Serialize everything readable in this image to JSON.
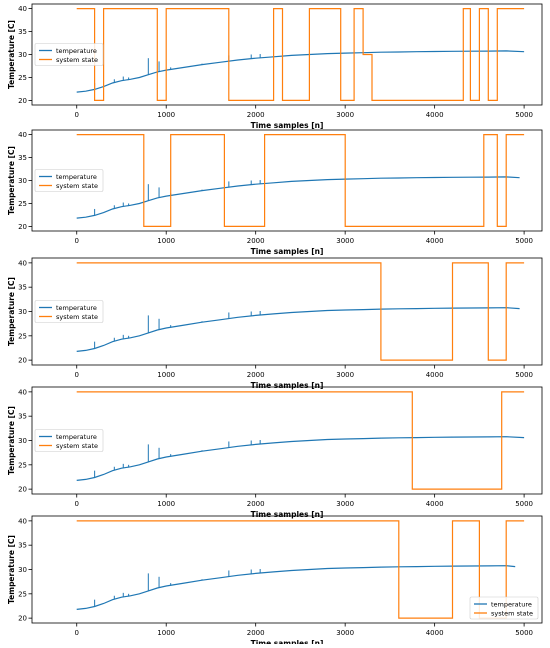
{
  "colors": {
    "temperature": "#1f77b4",
    "system_state": "#ff7f0e",
    "axes": "#000000",
    "background": "#ffffff"
  },
  "chart_data": [
    {
      "type": "line",
      "xlabel": "Time samples [n]",
      "ylabel": "Temperature [C]",
      "xlim": [
        -500,
        5200
      ],
      "ylim": [
        19,
        41
      ],
      "xticks": [
        0,
        1000,
        2000,
        3000,
        4000,
        5000
      ],
      "yticks": [
        20,
        25,
        30,
        35,
        40
      ],
      "grid": false,
      "legend": {
        "position": "center-left",
        "entries": [
          "temperature",
          "system state"
        ]
      },
      "series": [
        {
          "name": "temperature",
          "x": [
            0,
            100,
            200,
            300,
            400,
            500,
            600,
            700,
            800,
            900,
            1000,
            1200,
            1400,
            1600,
            1800,
            2000,
            2200,
            2400,
            2600,
            2800,
            3000,
            3200,
            3400,
            3600,
            3800,
            4000,
            4200,
            4400,
            4600,
            4800,
            5000
          ],
          "y": [
            21.8,
            22.0,
            22.4,
            23.0,
            23.8,
            24.3,
            24.6,
            25.0,
            25.6,
            26.2,
            26.6,
            27.2,
            27.8,
            28.3,
            28.8,
            29.2,
            29.5,
            29.8,
            30.0,
            30.2,
            30.3,
            30.4,
            30.5,
            30.55,
            30.6,
            30.65,
            30.7,
            30.72,
            30.75,
            30.78,
            30.6
          ],
          "spikes": [
            [
              200,
              23.8
            ],
            [
              420,
              24.6
            ],
            [
              520,
              25.2
            ],
            [
              580,
              25.0
            ],
            [
              800,
              29.2
            ],
            [
              920,
              28.5
            ],
            [
              1050,
              27.2
            ],
            [
              1400,
              28.0
            ],
            [
              1700,
              29.8
            ],
            [
              1950,
              30.0
            ],
            [
              2050,
              30.1
            ]
          ]
        },
        {
          "name": "system state",
          "x": [
            0,
            200,
            200,
            300,
            300,
            900,
            900,
            1000,
            1000,
            1700,
            1700,
            2200,
            2200,
            2300,
            2300,
            2600,
            2600,
            2950,
            2950,
            3100,
            3100,
            3200,
            3200,
            3300,
            3300,
            4320,
            4320,
            4400,
            4400,
            4500,
            4500,
            4600,
            4600,
            4700,
            4700,
            4900,
            4900,
            5000
          ],
          "y": [
            40,
            40,
            20,
            20,
            40,
            40,
            20,
            20,
            40,
            40,
            20,
            20,
            40,
            40,
            20,
            20,
            40,
            40,
            20,
            20,
            40,
            40,
            30,
            30,
            20,
            20,
            40,
            40,
            20,
            20,
            40,
            40,
            20,
            20,
            40,
            40,
            40,
            40
          ]
        }
      ]
    },
    {
      "type": "line",
      "xlabel": "Time samples [n]",
      "ylabel": "Temperature [C]",
      "xlim": [
        -500,
        5200
      ],
      "ylim": [
        19,
        41
      ],
      "xticks": [
        0,
        1000,
        2000,
        3000,
        4000,
        5000
      ],
      "yticks": [
        20,
        25,
        30,
        35,
        40
      ],
      "grid": false,
      "legend": {
        "position": "center-left",
        "entries": [
          "temperature",
          "system state"
        ]
      },
      "series": [
        {
          "name": "temperature",
          "x": [
            0,
            100,
            200,
            300,
            400,
            500,
            600,
            700,
            800,
            900,
            1000,
            1200,
            1400,
            1600,
            1800,
            2000,
            2200,
            2400,
            2600,
            2800,
            3000,
            3200,
            3400,
            3600,
            3800,
            4000,
            4200,
            4400,
            4600,
            4800,
            4950
          ],
          "y": [
            21.8,
            22.0,
            22.4,
            23.0,
            23.8,
            24.3,
            24.6,
            25.0,
            25.6,
            26.2,
            26.6,
            27.2,
            27.8,
            28.3,
            28.8,
            29.2,
            29.5,
            29.8,
            30.0,
            30.2,
            30.3,
            30.4,
            30.5,
            30.55,
            30.6,
            30.65,
            30.7,
            30.72,
            30.75,
            30.78,
            30.6
          ],
          "spikes": [
            [
              200,
              23.8
            ],
            [
              420,
              24.6
            ],
            [
              520,
              25.2
            ],
            [
              580,
              25.0
            ],
            [
              800,
              29.2
            ],
            [
              920,
              28.5
            ],
            [
              1050,
              27.2
            ],
            [
              1400,
              28.0
            ],
            [
              1700,
              29.8
            ],
            [
              1950,
              30.0
            ],
            [
              2050,
              30.1
            ]
          ]
        },
        {
          "name": "system state",
          "x": [
            0,
            750,
            750,
            1050,
            1050,
            1650,
            1650,
            2100,
            2100,
            3000,
            3000,
            4550,
            4550,
            4700,
            4700,
            4800,
            4800,
            5000
          ],
          "y": [
            40,
            40,
            20,
            20,
            40,
            40,
            20,
            20,
            40,
            40,
            20,
            20,
            40,
            40,
            20,
            20,
            40,
            40
          ]
        }
      ]
    },
    {
      "type": "line",
      "xlabel": "Time samples [n]",
      "ylabel": "Temperature [C]",
      "xlim": [
        -500,
        5200
      ],
      "ylim": [
        19,
        41
      ],
      "xticks": [
        0,
        1000,
        2000,
        3000,
        4000,
        5000
      ],
      "yticks": [
        20,
        25,
        30,
        35,
        40
      ],
      "grid": false,
      "legend": {
        "position": "center-left",
        "entries": [
          "temperature",
          "system state"
        ]
      },
      "series": [
        {
          "name": "temperature",
          "x": [
            0,
            100,
            200,
            300,
            400,
            500,
            600,
            700,
            800,
            900,
            1000,
            1200,
            1400,
            1600,
            1800,
            2000,
            2200,
            2400,
            2600,
            2800,
            3000,
            3200,
            3400,
            3600,
            3800,
            4000,
            4200,
            4400,
            4600,
            4800,
            4950
          ],
          "y": [
            21.8,
            22.0,
            22.4,
            23.0,
            23.8,
            24.3,
            24.6,
            25.0,
            25.6,
            26.2,
            26.6,
            27.2,
            27.8,
            28.3,
            28.8,
            29.2,
            29.5,
            29.8,
            30.0,
            30.2,
            30.3,
            30.4,
            30.5,
            30.55,
            30.6,
            30.65,
            30.7,
            30.72,
            30.75,
            30.78,
            30.6
          ],
          "spikes": [
            [
              200,
              23.8
            ],
            [
              420,
              24.6
            ],
            [
              520,
              25.2
            ],
            [
              580,
              25.0
            ],
            [
              800,
              29.2
            ],
            [
              920,
              28.5
            ],
            [
              1050,
              27.2
            ],
            [
              1400,
              28.0
            ],
            [
              1700,
              29.8
            ],
            [
              1950,
              30.0
            ],
            [
              2050,
              30.1
            ]
          ]
        },
        {
          "name": "system state",
          "x": [
            0,
            3400,
            3400,
            4200,
            4200,
            4600,
            4600,
            4800,
            4800,
            5000
          ],
          "y": [
            40,
            40,
            20,
            20,
            40,
            40,
            20,
            20,
            40,
            40
          ]
        }
      ]
    },
    {
      "type": "line",
      "xlabel": "Time samples [n]",
      "ylabel": "Temperature [C]",
      "xlim": [
        -500,
        5200
      ],
      "ylim": [
        19,
        41
      ],
      "xticks": [
        0,
        1000,
        2000,
        3000,
        4000,
        5000
      ],
      "yticks": [
        20,
        25,
        30,
        35,
        40
      ],
      "grid": false,
      "legend": {
        "position": "center-left",
        "entries": [
          "temperature",
          "system state"
        ]
      },
      "series": [
        {
          "name": "temperature",
          "x": [
            0,
            100,
            200,
            300,
            400,
            500,
            600,
            700,
            800,
            900,
            1000,
            1200,
            1400,
            1600,
            1800,
            2000,
            2200,
            2400,
            2600,
            2800,
            3000,
            3200,
            3400,
            3600,
            3800,
            4000,
            4200,
            4400,
            4600,
            4800,
            5000
          ],
          "y": [
            21.8,
            22.0,
            22.4,
            23.0,
            23.8,
            24.3,
            24.6,
            25.0,
            25.6,
            26.2,
            26.6,
            27.2,
            27.8,
            28.3,
            28.8,
            29.2,
            29.5,
            29.8,
            30.0,
            30.2,
            30.3,
            30.4,
            30.5,
            30.55,
            30.6,
            30.65,
            30.7,
            30.72,
            30.75,
            30.78,
            30.6
          ],
          "spikes": [
            [
              200,
              23.8
            ],
            [
              420,
              24.6
            ],
            [
              520,
              25.2
            ],
            [
              580,
              25.0
            ],
            [
              800,
              29.2
            ],
            [
              920,
              28.5
            ],
            [
              1050,
              27.2
            ],
            [
              1400,
              28.0
            ],
            [
              1700,
              29.8
            ],
            [
              1950,
              30.0
            ],
            [
              2050,
              30.1
            ]
          ]
        },
        {
          "name": "system state",
          "x": [
            0,
            3750,
            3750,
            4750,
            4750,
            5000
          ],
          "y": [
            40,
            40,
            20,
            20,
            40,
            40
          ]
        }
      ]
    },
    {
      "type": "line",
      "xlabel": "Time samples [n]",
      "ylabel": "Temperature [C]",
      "xlim": [
        -500,
        5200
      ],
      "ylim": [
        19,
        41
      ],
      "xticks": [
        0,
        1000,
        2000,
        3000,
        4000,
        5000
      ],
      "yticks": [
        20,
        25,
        30,
        35,
        40
      ],
      "grid": false,
      "legend": {
        "position": "lower-right",
        "entries": [
          "temperature",
          "system state"
        ]
      },
      "series": [
        {
          "name": "temperature",
          "x": [
            0,
            100,
            200,
            300,
            400,
            500,
            600,
            700,
            800,
            900,
            1000,
            1200,
            1400,
            1600,
            1800,
            2000,
            2200,
            2400,
            2600,
            2800,
            3000,
            3200,
            3400,
            3600,
            3800,
            4000,
            4200,
            4400,
            4600,
            4800,
            4900
          ],
          "y": [
            21.8,
            22.0,
            22.4,
            23.0,
            23.8,
            24.3,
            24.6,
            25.0,
            25.6,
            26.2,
            26.6,
            27.2,
            27.8,
            28.3,
            28.8,
            29.2,
            29.5,
            29.8,
            30.0,
            30.2,
            30.3,
            30.4,
            30.5,
            30.55,
            30.6,
            30.65,
            30.7,
            30.72,
            30.75,
            30.78,
            30.6
          ],
          "spikes": [
            [
              200,
              23.8
            ],
            [
              420,
              24.6
            ],
            [
              520,
              25.2
            ],
            [
              580,
              25.0
            ],
            [
              800,
              29.2
            ],
            [
              920,
              28.5
            ],
            [
              1050,
              27.2
            ],
            [
              1400,
              28.0
            ],
            [
              1700,
              29.8
            ],
            [
              1950,
              30.0
            ],
            [
              2050,
              30.1
            ]
          ]
        },
        {
          "name": "system state",
          "x": [
            0,
            3600,
            3600,
            4200,
            4200,
            4500,
            4500,
            4800,
            4800,
            5000
          ],
          "y": [
            40,
            40,
            20,
            20,
            40,
            40,
            20,
            20,
            40,
            40
          ]
        }
      ]
    }
  ]
}
